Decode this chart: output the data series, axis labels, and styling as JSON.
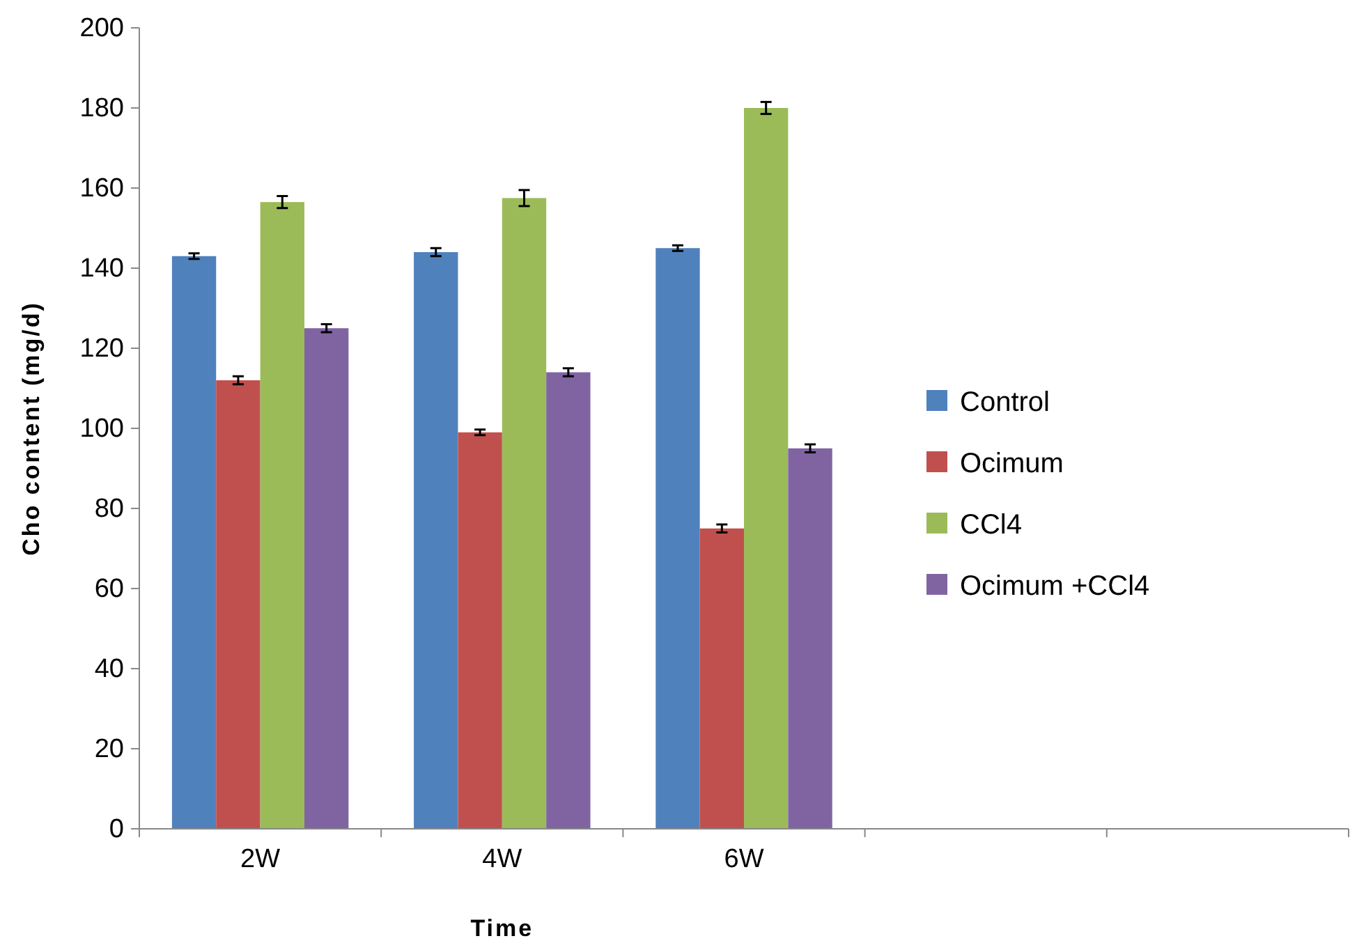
{
  "chart_data": {
    "type": "bar",
    "xlabel": "Time",
    "ylabel": "Cho content (mg/d)",
    "categories": [
      "2W",
      "4W",
      "6W",
      null,
      null
    ],
    "series": [
      {
        "name": "Control",
        "color": "#4f81bd",
        "values": [
          143,
          144,
          145,
          null,
          null
        ],
        "errors": [
          0.7,
          1,
          0.7,
          null,
          null
        ]
      },
      {
        "name": "Ocimum",
        "color": "#c0504d",
        "values": [
          112,
          99,
          75,
          null,
          null
        ],
        "errors": [
          1,
          0.7,
          1,
          null,
          null
        ]
      },
      {
        "name": "CCl4",
        "color": "#9bbb59",
        "values": [
          156.5,
          157.5,
          180,
          null,
          null
        ],
        "errors": [
          1.5,
          2,
          1.5,
          null,
          null
        ]
      },
      {
        "name": "Ocimum +CCl4",
        "color": "#8064a2",
        "values": [
          125,
          114,
          95,
          null,
          null
        ],
        "errors": [
          1,
          1,
          1,
          null,
          null
        ]
      }
    ],
    "ylim": [
      0,
      200
    ],
    "yticks": [
      0,
      20,
      40,
      60,
      80,
      100,
      120,
      140,
      160,
      180,
      200
    ],
    "grid": false,
    "legend": "right"
  }
}
